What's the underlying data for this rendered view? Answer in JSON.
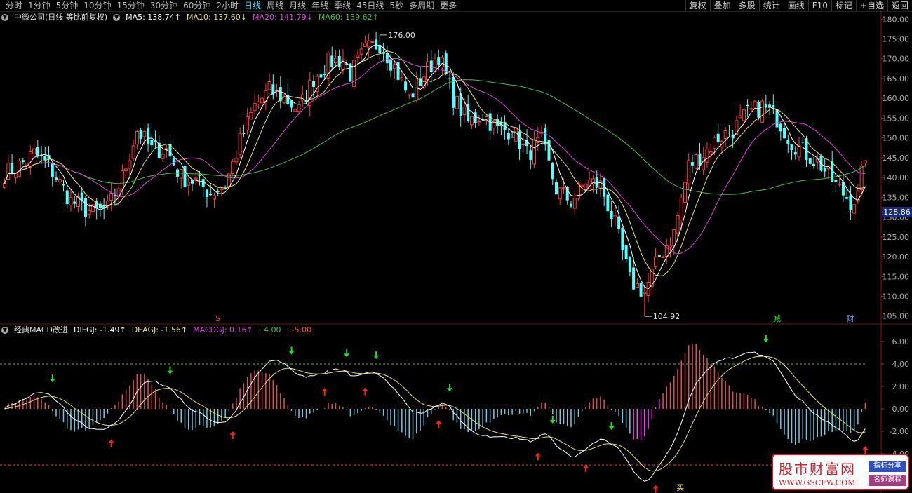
{
  "toolbar": {
    "periods": [
      "分时",
      "1分钟",
      "5分钟",
      "10分钟",
      "15分钟",
      "30分钟",
      "60分钟",
      "2小时",
      "日线",
      "周线",
      "月线",
      "年线",
      "季线",
      "45日线",
      "5秒",
      "多周期",
      "更多"
    ],
    "active_period": "日线",
    "actions": [
      "复权",
      "叠加",
      "多股",
      "统计",
      "画线",
      "F10",
      "标记",
      "+自选",
      "返回"
    ]
  },
  "main_legend": {
    "title": "中微公司(日线 等比前复权)",
    "ma5": "MA5: 138.74↑",
    "ma10": "MA10: 137.60↓",
    "ma20": "MA20: 141.79↓",
    "ma60": "MA60: 139.62↑"
  },
  "macd_legend": {
    "title": "经典MACD改进",
    "dif": "DIFGJ: -1.49↑",
    "dea": "DEAGJ: -1.56↑",
    "macd": "MACDGJ: 0.16↑",
    "upper": ": 4.00",
    "lower": ": -5.00"
  },
  "cursor_price": "128.86",
  "annotations": {
    "high_label": "176.00",
    "low_label": "104.92",
    "mark_s": "S",
    "mark_jian": "减",
    "mark_cai": "财",
    "mark_mai": "买"
  },
  "watermark": {
    "title": "股市财富网",
    "url": "WWW.GSCFW.COM",
    "tag1": "指标分享",
    "tag2": "名师课程"
  },
  "colors": {
    "up": "#ff3b3b",
    "down": "#54ffff",
    "ma5": "#ffffff",
    "ma10": "#e8e060",
    "ma20": "#e040e0",
    "ma60": "#40c040",
    "dif": "#ffffff",
    "dea": "#e8e060",
    "hist_pos": "#e05050",
    "hist_neg": "#70c8e0",
    "hist_deep": "#ff40ff"
  },
  "chart_data": [
    {
      "type": "candlestick",
      "title": "中微公司(日线 等比前复权)",
      "ylim": [
        103,
        182
      ],
      "yticks": [
        105,
        110,
        115,
        120,
        125,
        130,
        135,
        140,
        145,
        150,
        155,
        160,
        165,
        170,
        175,
        180
      ],
      "anchors_close": [
        [
          0,
          141
        ],
        [
          4,
          143
        ],
        [
          8,
          146
        ],
        [
          12,
          143
        ],
        [
          18,
          134
        ],
        [
          24,
          131
        ],
        [
          28,
          132
        ],
        [
          32,
          140
        ],
        [
          36,
          152
        ],
        [
          40,
          147
        ],
        [
          44,
          147
        ],
        [
          48,
          140
        ],
        [
          52,
          139
        ],
        [
          56,
          136
        ],
        [
          60,
          138
        ],
        [
          64,
          149
        ],
        [
          68,
          158
        ],
        [
          72,
          162
        ],
        [
          76,
          160
        ],
        [
          80,
          157
        ],
        [
          84,
          165
        ],
        [
          88,
          169
        ],
        [
          92,
          170
        ],
        [
          94,
          166
        ],
        [
          98,
          172
        ],
        [
          102,
          174
        ],
        [
          106,
          168
        ],
        [
          110,
          160
        ],
        [
          114,
          166
        ],
        [
          118,
          171
        ],
        [
          122,
          160
        ],
        [
          126,
          154
        ],
        [
          130,
          156
        ],
        [
          134,
          152
        ],
        [
          138,
          152
        ],
        [
          142,
          146
        ],
        [
          146,
          149
        ],
        [
          150,
          137
        ],
        [
          154,
          134
        ],
        [
          158,
          139
        ],
        [
          162,
          138
        ],
        [
          166,
          128
        ],
        [
          170,
          114
        ],
        [
          174,
          111
        ],
        [
          178,
          120
        ],
        [
          182,
          126
        ],
        [
          186,
          143
        ],
        [
          190,
          146
        ],
        [
          194,
          150
        ],
        [
          198,
          152
        ],
        [
          202,
          156
        ],
        [
          206,
          158
        ],
        [
          210,
          155
        ],
        [
          214,
          149
        ],
        [
          218,
          146
        ],
        [
          222,
          143
        ],
        [
          226,
          138
        ],
        [
          230,
          134
        ],
        [
          232,
          135
        ],
        [
          234,
          146
        ]
      ],
      "high": 176.0,
      "low": 104.92,
      "ma": [
        {
          "name": "MA5",
          "value": 138.74
        },
        {
          "name": "MA10",
          "value": 137.6
        },
        {
          "name": "MA20",
          "value": 141.79
        },
        {
          "name": "MA60",
          "value": 139.62
        }
      ]
    },
    {
      "type": "macd",
      "title": "经典MACD改进",
      "ylim": [
        -7.5,
        7.5
      ],
      "yticks": [
        6.0,
        4.0,
        2.0,
        0.0,
        -2.0,
        -4.0,
        -6.0
      ],
      "reference_lines": [
        4.0,
        -5.0
      ],
      "dif": -1.49,
      "dea": -1.56,
      "macd": 0.16
    }
  ]
}
